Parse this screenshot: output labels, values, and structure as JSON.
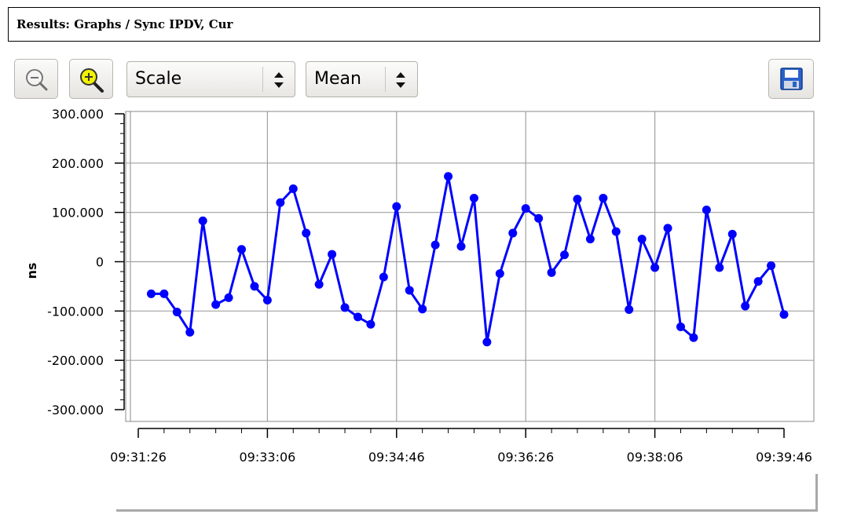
{
  "header": {
    "title": "Results: Graphs / Sync IPDV, Cur"
  },
  "toolbar": {
    "zoom_out_icon": "zoom-out-magnifier-icon",
    "zoom_in_icon": "zoom-in-magnifier-icon",
    "scale_select": {
      "value": "Scale"
    },
    "stat_select": {
      "value": "Mean"
    },
    "save_icon": "save-floppy-icon"
  },
  "colors": {
    "series": "#0000ff",
    "grid": "#a0a0a0"
  },
  "chart_data": {
    "type": "line",
    "title": "",
    "xlabel": "",
    "ylabel": "ns",
    "x_ticks": [
      "09:31:26",
      "09:33:06",
      "09:34:46",
      "09:36:26",
      "09:38:06",
      "09:39:46"
    ],
    "xlim": [
      "09:31:26",
      "09:39:46"
    ],
    "y_ticks": [
      "300.000",
      "200.000",
      "100.000",
      "0",
      "-100.000",
      "-200.000",
      "-300.000"
    ],
    "ylim": [
      -300,
      300
    ],
    "grid": true,
    "legend_position": "bottom-center",
    "series": [
      {
        "name": "Sync IPDV, Cur",
        "color": "#0000ff",
        "marker": "circle",
        "x": [
          "09:31:36",
          "09:31:46",
          "09:31:56",
          "09:32:06",
          "09:32:16",
          "09:32:26",
          "09:32:36",
          "09:32:46",
          "09:32:56",
          "09:33:06",
          "09:33:16",
          "09:33:26",
          "09:33:36",
          "09:33:46",
          "09:33:56",
          "09:34:06",
          "09:34:16",
          "09:34:26",
          "09:34:36",
          "09:34:46",
          "09:34:56",
          "09:35:06",
          "09:35:16",
          "09:35:26",
          "09:35:36",
          "09:35:46",
          "09:35:56",
          "09:36:06",
          "09:36:16",
          "09:36:26",
          "09:36:36",
          "09:36:46",
          "09:36:56",
          "09:37:06",
          "09:37:16",
          "09:37:26",
          "09:37:36",
          "09:37:46",
          "09:37:56",
          "09:38:06",
          "09:38:16",
          "09:38:26",
          "09:38:36",
          "09:38:46",
          "09:38:56",
          "09:39:06",
          "09:39:16",
          "09:39:26",
          "09:39:36",
          "09:39:46"
        ],
        "values": [
          -65,
          -65,
          -102,
          -143,
          83,
          -87,
          -73,
          25,
          -50,
          -78,
          120,
          148,
          58,
          -46,
          15,
          -93,
          -112,
          -127,
          -31,
          112,
          -58,
          -96,
          34,
          173,
          31,
          129,
          -163,
          -24,
          58,
          108,
          88,
          -22,
          14,
          127,
          46,
          129,
          61,
          -97,
          46,
          -12,
          68,
          -132,
          -154,
          105,
          -12,
          56,
          -90,
          -40,
          -8,
          -107
        ]
      }
    ]
  }
}
